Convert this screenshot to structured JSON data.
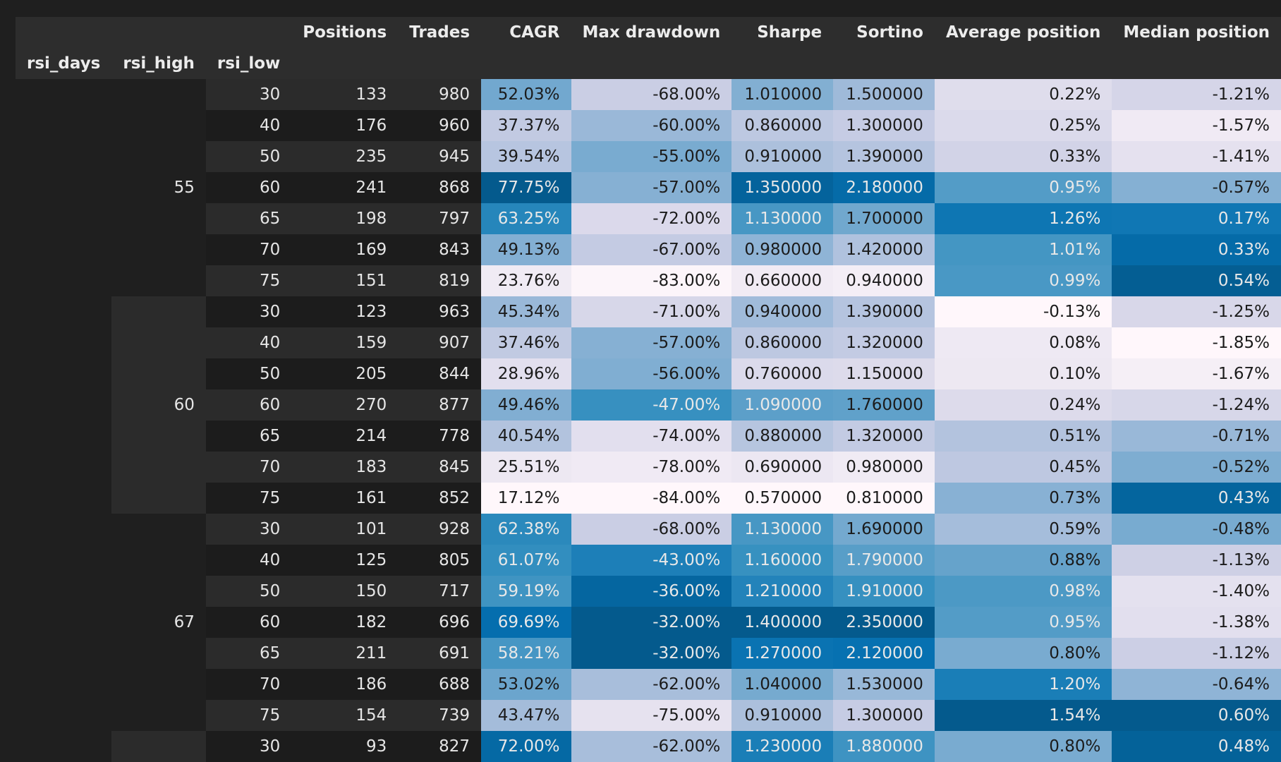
{
  "table": {
    "columns": [
      "Positions",
      "Trades",
      "CAGR",
      "Max drawdown",
      "Sharpe",
      "Sortino",
      "Average position",
      "Median position"
    ],
    "index_names": [
      "rsi_days",
      "rsi_high",
      "rsi_low"
    ],
    "groups": [
      {
        "rsi_high": "55",
        "rows": [
          {
            "rsi_low": "30",
            "cells": [
              "133",
              "980",
              "52.03%",
              "-68.00%",
              "1.010000",
              "1.500000",
              "0.22%",
              "-1.21%"
            ]
          },
          {
            "rsi_low": "40",
            "cells": [
              "176",
              "960",
              "37.37%",
              "-60.00%",
              "0.860000",
              "1.300000",
              "0.25%",
              "-1.57%"
            ]
          },
          {
            "rsi_low": "50",
            "cells": [
              "235",
              "945",
              "39.54%",
              "-55.00%",
              "0.910000",
              "1.390000",
              "0.33%",
              "-1.41%"
            ]
          },
          {
            "rsi_low": "60",
            "cells": [
              "241",
              "868",
              "77.75%",
              "-57.00%",
              "1.350000",
              "2.180000",
              "0.95%",
              "-0.57%"
            ]
          },
          {
            "rsi_low": "65",
            "cells": [
              "198",
              "797",
              "63.25%",
              "-72.00%",
              "1.130000",
              "1.700000",
              "1.26%",
              "0.17%"
            ]
          },
          {
            "rsi_low": "70",
            "cells": [
              "169",
              "843",
              "49.13%",
              "-67.00%",
              "0.980000",
              "1.420000",
              "1.01%",
              "0.33%"
            ]
          },
          {
            "rsi_low": "75",
            "cells": [
              "151",
              "819",
              "23.76%",
              "-83.00%",
              "0.660000",
              "0.940000",
              "0.99%",
              "0.54%"
            ]
          }
        ]
      },
      {
        "rsi_high": "60",
        "rows": [
          {
            "rsi_low": "30",
            "cells": [
              "123",
              "963",
              "45.34%",
              "-71.00%",
              "0.940000",
              "1.390000",
              "-0.13%",
              "-1.25%"
            ]
          },
          {
            "rsi_low": "40",
            "cells": [
              "159",
              "907",
              "37.46%",
              "-57.00%",
              "0.860000",
              "1.320000",
              "0.08%",
              "-1.85%"
            ]
          },
          {
            "rsi_low": "50",
            "cells": [
              "205",
              "844",
              "28.96%",
              "-56.00%",
              "0.760000",
              "1.150000",
              "0.10%",
              "-1.67%"
            ]
          },
          {
            "rsi_low": "60",
            "cells": [
              "270",
              "877",
              "49.46%",
              "-47.00%",
              "1.090000",
              "1.760000",
              "0.24%",
              "-1.24%"
            ]
          },
          {
            "rsi_low": "65",
            "cells": [
              "214",
              "778",
              "40.54%",
              "-74.00%",
              "0.880000",
              "1.320000",
              "0.51%",
              "-0.71%"
            ]
          },
          {
            "rsi_low": "70",
            "cells": [
              "183",
              "845",
              "25.51%",
              "-78.00%",
              "0.690000",
              "0.980000",
              "0.45%",
              "-0.52%"
            ]
          },
          {
            "rsi_low": "75",
            "cells": [
              "161",
              "852",
              "17.12%",
              "-84.00%",
              "0.570000",
              "0.810000",
              "0.73%",
              "0.43%"
            ]
          }
        ]
      },
      {
        "rsi_high": "67",
        "rows": [
          {
            "rsi_low": "30",
            "cells": [
              "101",
              "928",
              "62.38%",
              "-68.00%",
              "1.130000",
              "1.690000",
              "0.59%",
              "-0.48%"
            ]
          },
          {
            "rsi_low": "40",
            "cells": [
              "125",
              "805",
              "61.07%",
              "-43.00%",
              "1.160000",
              "1.790000",
              "0.88%",
              "-1.13%"
            ]
          },
          {
            "rsi_low": "50",
            "cells": [
              "150",
              "717",
              "59.19%",
              "-36.00%",
              "1.210000",
              "1.910000",
              "0.98%",
              "-1.40%"
            ]
          },
          {
            "rsi_low": "60",
            "cells": [
              "182",
              "696",
              "69.69%",
              "-32.00%",
              "1.400000",
              "2.350000",
              "0.95%",
              "-1.38%"
            ]
          },
          {
            "rsi_low": "65",
            "cells": [
              "211",
              "691",
              "58.21%",
              "-32.00%",
              "1.270000",
              "2.120000",
              "0.80%",
              "-1.12%"
            ]
          },
          {
            "rsi_low": "70",
            "cells": [
              "186",
              "688",
              "53.02%",
              "-62.00%",
              "1.040000",
              "1.530000",
              "1.20%",
              "-0.64%"
            ]
          },
          {
            "rsi_low": "75",
            "cells": [
              "154",
              "739",
              "43.47%",
              "-75.00%",
              "0.910000",
              "1.300000",
              "1.54%",
              "0.60%"
            ]
          }
        ]
      },
      {
        "rsi_high": "",
        "rows": [
          {
            "rsi_low": "30",
            "cells": [
              "93",
              "827",
              "72.00%",
              "-62.00%",
              "1.230000",
              "1.880000",
              "0.80%",
              "0.48%"
            ]
          }
        ]
      }
    ]
  },
  "colors": {
    "background": "#1f1f1f",
    "header_bg": "#2d2d2d",
    "row_even": "#2b2b2b",
    "row_odd": "#1c1c1c",
    "gradient_low": "#fff7fb",
    "gradient_high": "#0566a2"
  }
}
